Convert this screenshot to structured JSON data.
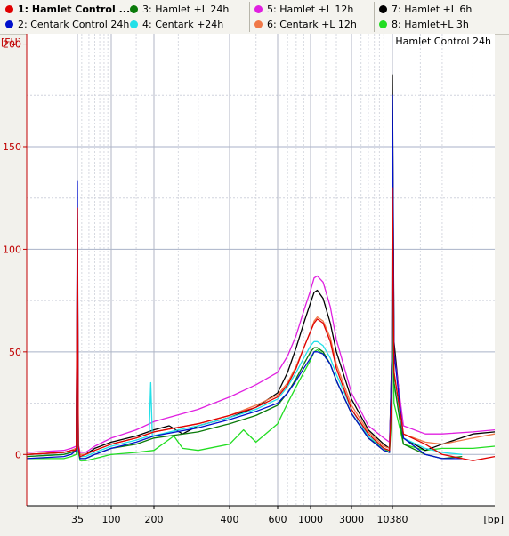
{
  "legend": [
    {
      "label": "1: Hamlet Control ...",
      "color": "#e00000",
      "active": true
    },
    {
      "label": "2: Centark Control 24h",
      "color": "#0010cc"
    },
    {
      "label": "3: Hamlet +L 24h",
      "color": "#0a7a0a"
    },
    {
      "label": "4: Centark +24h",
      "color": "#22e0e8"
    },
    {
      "label": "5: Hamlet +L 12h",
      "color": "#e020e0"
    },
    {
      "label": "6: Centark +L 12h",
      "color": "#f07848"
    },
    {
      "label": "7: Hamlet +L 6h",
      "color": "#000000"
    },
    {
      "label": "8: Hamlet+L 3h",
      "color": "#22dd22"
    }
  ],
  "chart_data": {
    "type": "line",
    "title": "Hamlet Control 24h",
    "ylabel": "[FU]",
    "xlabel": "[bp]",
    "ylim": [
      -25,
      205
    ],
    "y_ticks": [
      0,
      50,
      100,
      150,
      200
    ],
    "x_ticks": [
      "35",
      "100",
      "200",
      "400",
      "600",
      "1000",
      "3000",
      "10380"
    ],
    "grid": true,
    "x_scale": "ladder",
    "series": [
      {
        "name": "1: Hamlet Control ...",
        "color": "#e00000",
        "points": [
          [
            10,
            0
          ],
          [
            25,
            1
          ],
          [
            30,
            2
          ],
          [
            33,
            2
          ],
          [
            34,
            3
          ],
          [
            35,
            120
          ],
          [
            36,
            4
          ],
          [
            38,
            -1
          ],
          [
            45,
            0
          ],
          [
            60,
            2
          ],
          [
            100,
            5
          ],
          [
            150,
            8
          ],
          [
            200,
            11
          ],
          [
            300,
            15
          ],
          [
            400,
            19
          ],
          [
            500,
            23
          ],
          [
            600,
            28
          ],
          [
            700,
            34
          ],
          [
            800,
            42
          ],
          [
            900,
            52
          ],
          [
            1000,
            60
          ],
          [
            1100,
            64
          ],
          [
            1200,
            66
          ],
          [
            1400,
            64
          ],
          [
            1700,
            55
          ],
          [
            2000,
            42
          ],
          [
            3000,
            22
          ],
          [
            5000,
            10
          ],
          [
            8000,
            3
          ],
          [
            9500,
            2
          ],
          [
            10200,
            30
          ],
          [
            10380,
            130
          ],
          [
            10600,
            40
          ],
          [
            12000,
            10
          ],
          [
            16000,
            5
          ],
          [
            20000,
            0
          ],
          [
            30000,
            -3
          ],
          [
            40000,
            -1
          ]
        ]
      },
      {
        "name": "2: Centark Control 24h",
        "color": "#0010cc",
        "points": [
          [
            10,
            -2
          ],
          [
            25,
            -1
          ],
          [
            30,
            0
          ],
          [
            34,
            2
          ],
          [
            35,
            133
          ],
          [
            36,
            3
          ],
          [
            38,
            -2
          ],
          [
            45,
            -2
          ],
          [
            60,
            0
          ],
          [
            100,
            3
          ],
          [
            150,
            6
          ],
          [
            200,
            9
          ],
          [
            300,
            13
          ],
          [
            400,
            17
          ],
          [
            500,
            21
          ],
          [
            600,
            25
          ],
          [
            700,
            30
          ],
          [
            800,
            36
          ],
          [
            900,
            42
          ],
          [
            1000,
            47
          ],
          [
            1100,
            50
          ],
          [
            1200,
            50
          ],
          [
            1400,
            49
          ],
          [
            1700,
            44
          ],
          [
            2000,
            36
          ],
          [
            3000,
            20
          ],
          [
            5000,
            8
          ],
          [
            8000,
            2
          ],
          [
            9500,
            1
          ],
          [
            10200,
            50
          ],
          [
            10380,
            175
          ],
          [
            10600,
            50
          ],
          [
            12000,
            8
          ],
          [
            16000,
            0
          ],
          [
            20000,
            -2
          ],
          [
            26000,
            -2
          ]
        ]
      },
      {
        "name": "3: Hamlet +L 24h",
        "color": "#0a7a0a",
        "points": [
          [
            10,
            -1
          ],
          [
            25,
            0
          ],
          [
            30,
            1
          ],
          [
            34,
            2
          ],
          [
            35,
            85
          ],
          [
            36,
            3
          ],
          [
            38,
            -2
          ],
          [
            45,
            -2
          ],
          [
            60,
            0
          ],
          [
            100,
            3
          ],
          [
            150,
            5
          ],
          [
            200,
            8
          ],
          [
            300,
            11
          ],
          [
            400,
            15
          ],
          [
            500,
            19
          ],
          [
            600,
            24
          ],
          [
            700,
            30
          ],
          [
            800,
            37
          ],
          [
            900,
            44
          ],
          [
            1000,
            50
          ],
          [
            1100,
            52
          ],
          [
            1200,
            52
          ],
          [
            1400,
            50
          ],
          [
            1700,
            44
          ],
          [
            2000,
            36
          ],
          [
            3000,
            20
          ],
          [
            5000,
            8
          ],
          [
            8000,
            2
          ],
          [
            9500,
            1
          ],
          [
            10200,
            30
          ],
          [
            10380,
            120
          ],
          [
            10600,
            35
          ],
          [
            12000,
            5
          ],
          [
            16000,
            0
          ],
          [
            20000,
            -2
          ],
          [
            26000,
            -1
          ]
        ]
      },
      {
        "name": "4: Centark +24h",
        "color": "#22e0e8",
        "points": [
          [
            10,
            -1
          ],
          [
            25,
            0
          ],
          [
            30,
            1
          ],
          [
            34,
            2
          ],
          [
            35,
            90
          ],
          [
            36,
            3
          ],
          [
            38,
            -1
          ],
          [
            45,
            -1
          ],
          [
            60,
            1
          ],
          [
            100,
            4
          ],
          [
            150,
            7
          ],
          [
            185,
            9
          ],
          [
            190,
            35
          ],
          [
            195,
            9
          ],
          [
            250,
            12
          ],
          [
            300,
            14
          ],
          [
            400,
            18
          ],
          [
            500,
            22
          ],
          [
            600,
            27
          ],
          [
            700,
            33
          ],
          [
            800,
            40
          ],
          [
            900,
            47
          ],
          [
            1000,
            53
          ],
          [
            1100,
            55
          ],
          [
            1200,
            55
          ],
          [
            1400,
            53
          ],
          [
            1700,
            47
          ],
          [
            2000,
            39
          ],
          [
            3000,
            22
          ],
          [
            5000,
            9
          ],
          [
            8000,
            3
          ],
          [
            9500,
            2
          ],
          [
            10200,
            30
          ],
          [
            10380,
            118
          ],
          [
            10600,
            35
          ],
          [
            12000,
            8
          ],
          [
            16000,
            3
          ],
          [
            20000,
            1
          ],
          [
            26000,
            0
          ]
        ]
      },
      {
        "name": "5: Hamlet +L 12h",
        "color": "#e020e0",
        "points": [
          [
            10,
            1
          ],
          [
            25,
            2
          ],
          [
            30,
            3
          ],
          [
            34,
            4
          ],
          [
            35,
            80
          ],
          [
            36,
            5
          ],
          [
            38,
            1
          ],
          [
            45,
            1
          ],
          [
            60,
            4
          ],
          [
            100,
            8
          ],
          [
            150,
            12
          ],
          [
            200,
            16
          ],
          [
            300,
            22
          ],
          [
            400,
            28
          ],
          [
            500,
            34
          ],
          [
            600,
            40
          ],
          [
            700,
            48
          ],
          [
            800,
            58
          ],
          [
            900,
            70
          ],
          [
            1000,
            80
          ],
          [
            1100,
            86
          ],
          [
            1200,
            87
          ],
          [
            1400,
            84
          ],
          [
            1700,
            72
          ],
          [
            2000,
            56
          ],
          [
            3000,
            30
          ],
          [
            5000,
            14
          ],
          [
            8000,
            8
          ],
          [
            9500,
            6
          ],
          [
            10200,
            40
          ],
          [
            10380,
            110
          ],
          [
            10600,
            50
          ],
          [
            12000,
            14
          ],
          [
            16000,
            10
          ],
          [
            20000,
            10
          ],
          [
            30000,
            11
          ],
          [
            40000,
            12
          ]
        ]
      },
      {
        "name": "6: Centark +L 12h",
        "color": "#f07848",
        "points": [
          [
            10,
            0
          ],
          [
            25,
            1
          ],
          [
            30,
            2
          ],
          [
            34,
            3
          ],
          [
            35,
            115
          ],
          [
            36,
            4
          ],
          [
            38,
            0
          ],
          [
            45,
            0
          ],
          [
            60,
            2
          ],
          [
            100,
            5
          ],
          [
            150,
            8
          ],
          [
            200,
            11
          ],
          [
            300,
            15
          ],
          [
            400,
            19
          ],
          [
            500,
            24
          ],
          [
            600,
            29
          ],
          [
            700,
            35
          ],
          [
            800,
            43
          ],
          [
            900,
            52
          ],
          [
            1000,
            60
          ],
          [
            1100,
            65
          ],
          [
            1200,
            67
          ],
          [
            1400,
            65
          ],
          [
            1700,
            57
          ],
          [
            2000,
            44
          ],
          [
            3000,
            24
          ],
          [
            5000,
            11
          ],
          [
            8000,
            4
          ],
          [
            9500,
            3
          ],
          [
            10200,
            40
          ],
          [
            10380,
            150
          ],
          [
            10600,
            40
          ],
          [
            12000,
            10
          ],
          [
            16000,
            6
          ],
          [
            20000,
            5
          ],
          [
            30000,
            8
          ],
          [
            40000,
            10
          ]
        ]
      },
      {
        "name": "7: Hamlet +L 6h",
        "color": "#000000",
        "points": [
          [
            10,
            0
          ],
          [
            25,
            1
          ],
          [
            30,
            2
          ],
          [
            34,
            3
          ],
          [
            35,
            105
          ],
          [
            36,
            4
          ],
          [
            38,
            0
          ],
          [
            45,
            0
          ],
          [
            60,
            3
          ],
          [
            100,
            6
          ],
          [
            150,
            9
          ],
          [
            200,
            12
          ],
          [
            230,
            14
          ],
          [
            260,
            10
          ],
          [
            300,
            14
          ],
          [
            400,
            18
          ],
          [
            500,
            23
          ],
          [
            600,
            30
          ],
          [
            700,
            40
          ],
          [
            800,
            52
          ],
          [
            900,
            64
          ],
          [
            1000,
            74
          ],
          [
            1100,
            79
          ],
          [
            1200,
            80
          ],
          [
            1400,
            76
          ],
          [
            1700,
            64
          ],
          [
            2000,
            50
          ],
          [
            3000,
            27
          ],
          [
            5000,
            12
          ],
          [
            8000,
            5
          ],
          [
            9500,
            3
          ],
          [
            10200,
            50
          ],
          [
            10380,
            185
          ],
          [
            10600,
            55
          ],
          [
            12000,
            8
          ],
          [
            16000,
            2
          ],
          [
            20000,
            5
          ],
          [
            30000,
            10
          ],
          [
            40000,
            11
          ]
        ]
      },
      {
        "name": "8: Hamlet+L 3h",
        "color": "#22dd22",
        "points": [
          [
            10,
            -2
          ],
          [
            25,
            -2
          ],
          [
            30,
            -1
          ],
          [
            34,
            0
          ],
          [
            35,
            45
          ],
          [
            36,
            1
          ],
          [
            38,
            -3
          ],
          [
            45,
            -3
          ],
          [
            60,
            -2
          ],
          [
            100,
            0
          ],
          [
            150,
            1
          ],
          [
            200,
            2
          ],
          [
            240,
            9
          ],
          [
            260,
            3
          ],
          [
            300,
            2
          ],
          [
            400,
            5
          ],
          [
            450,
            12
          ],
          [
            500,
            6
          ],
          [
            600,
            15
          ],
          [
            700,
            25
          ],
          [
            800,
            33
          ],
          [
            900,
            40
          ],
          [
            1000,
            46
          ],
          [
            1100,
            50
          ],
          [
            1200,
            51
          ],
          [
            1400,
            49
          ],
          [
            1700,
            44
          ],
          [
            2000,
            36
          ],
          [
            3000,
            20
          ],
          [
            5000,
            8
          ],
          [
            8000,
            3
          ],
          [
            9500,
            1
          ],
          [
            10200,
            20
          ],
          [
            10380,
            80
          ],
          [
            10600,
            25
          ],
          [
            12000,
            5
          ],
          [
            16000,
            2
          ],
          [
            20000,
            3
          ],
          [
            30000,
            3
          ],
          [
            40000,
            4
          ]
        ]
      }
    ]
  }
}
